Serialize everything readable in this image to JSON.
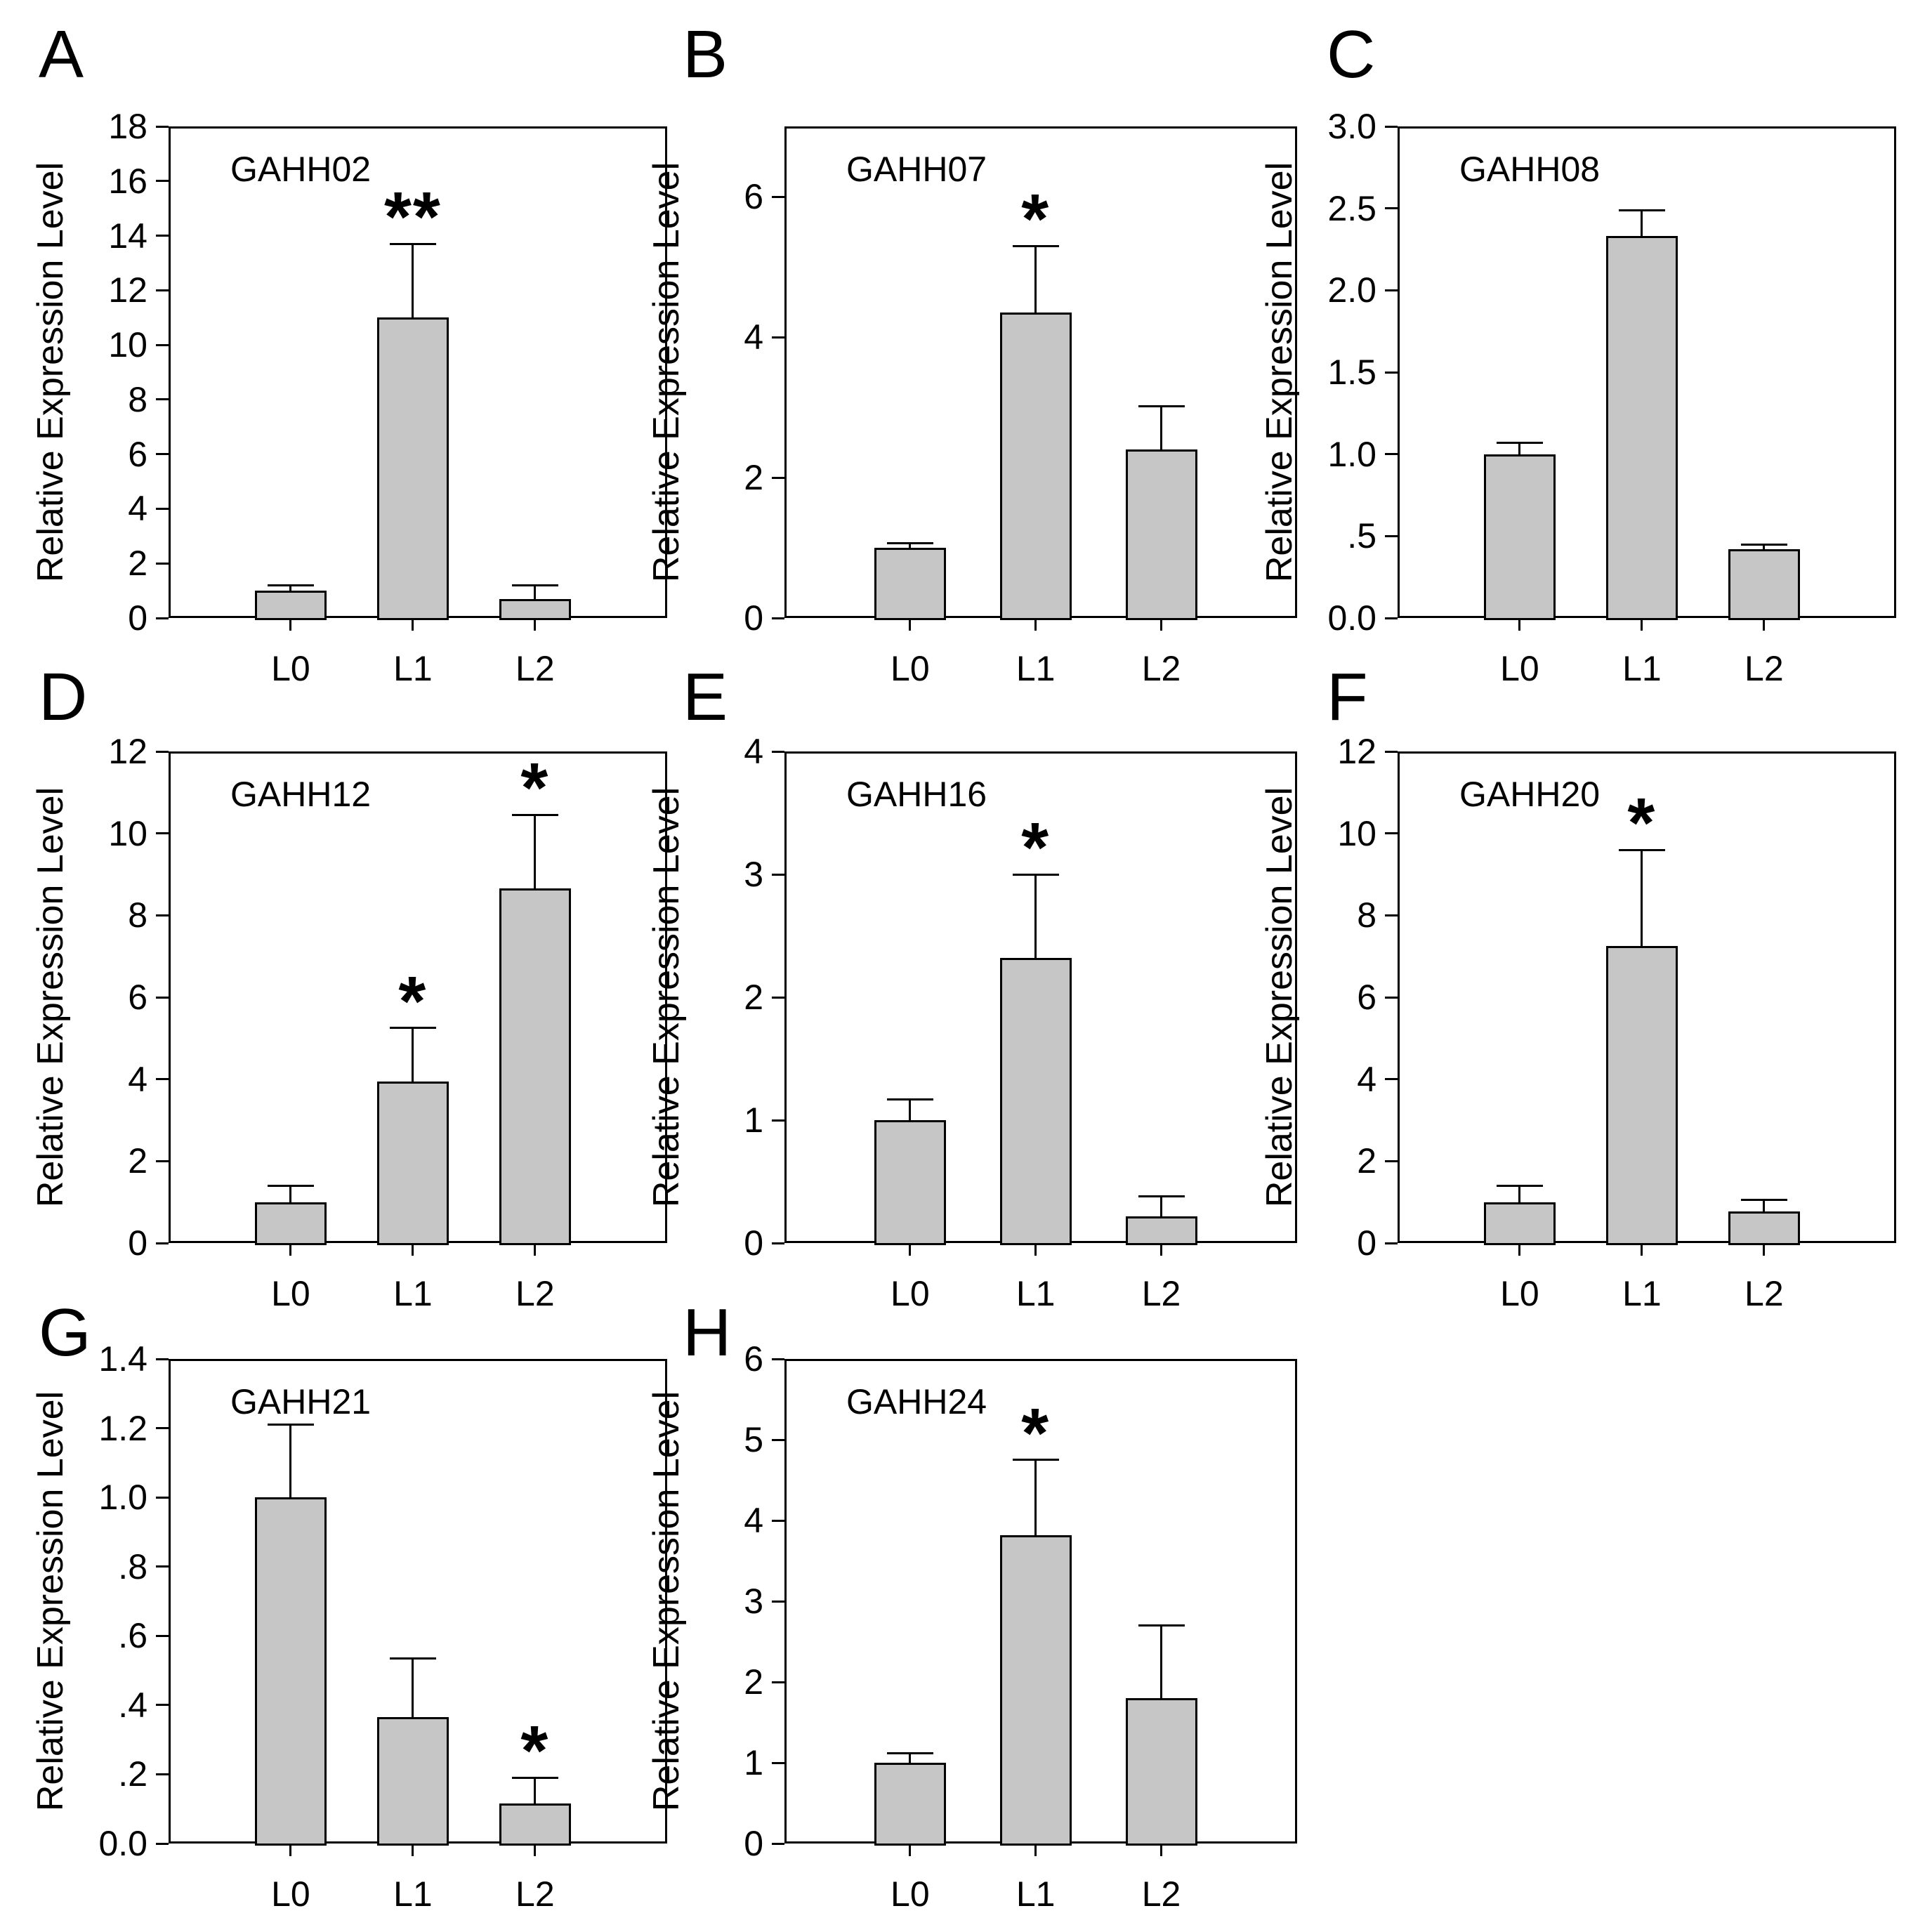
{
  "figure": {
    "description": "Eight-panel bar chart figure of relative gene expression levels in leaf stages L0, L1, L2",
    "shared_ylabel": "Relative Expression Level",
    "categories": [
      "L0",
      "L1",
      "L2"
    ]
  },
  "colors": {
    "bar_fill": "#c6c6c6",
    "axis": "#000000",
    "background": "#ffffff"
  },
  "chart_data": [
    {
      "type": "bar",
      "panel": "A",
      "title": "GAHH02",
      "ylabel": "Relative Expression Level",
      "categories": [
        "L0",
        "L1",
        "L2"
      ],
      "values": [
        1.0,
        11.0,
        0.7
      ],
      "errors": [
        0.2,
        2.7,
        0.5
      ],
      "significance": [
        "",
        "**",
        ""
      ],
      "ylim": [
        0,
        18
      ],
      "ytick_values": [
        0,
        2,
        4,
        6,
        8,
        10,
        12,
        14,
        16,
        18
      ],
      "ytick_labels": [
        "0",
        "2",
        "4",
        "6",
        "8",
        "10",
        "12",
        "14",
        "16",
        "18"
      ]
    },
    {
      "type": "bar",
      "panel": "B",
      "title": "GAHH07",
      "ylabel": "Relative Expression Level",
      "categories": [
        "L0",
        "L1",
        "L2"
      ],
      "values": [
        1.0,
        4.35,
        2.4
      ],
      "errors": [
        0.07,
        0.95,
        0.62
      ],
      "significance": [
        "",
        "*",
        ""
      ],
      "ylim": [
        0,
        7
      ],
      "ytick_values": [
        0,
        2,
        4,
        6
      ],
      "ytick_labels": [
        "0",
        "2",
        "4",
        "6"
      ]
    },
    {
      "type": "bar",
      "panel": "C",
      "title": "GAHH08",
      "ylabel": "Relative Expression Level",
      "categories": [
        "L0",
        "L1",
        "L2"
      ],
      "values": [
        1.0,
        2.33,
        0.42
      ],
      "errors": [
        0.07,
        0.16,
        0.03
      ],
      "significance": [
        "",
        "",
        ""
      ],
      "ylim": [
        0,
        3
      ],
      "ytick_values": [
        0,
        0.5,
        1.0,
        1.5,
        2.0,
        2.5,
        3.0
      ],
      "ytick_labels": [
        "0.0",
        ".5",
        "1.0",
        "1.5",
        "2.0",
        "2.5",
        "3.0"
      ]
    },
    {
      "type": "bar",
      "panel": "D",
      "title": "GAHH12",
      "ylabel": "Relative Expression Level",
      "categories": [
        "L0",
        "L1",
        "L2"
      ],
      "values": [
        1.0,
        3.95,
        8.65
      ],
      "errors": [
        0.4,
        1.3,
        1.8
      ],
      "significance": [
        "",
        "*",
        "*"
      ],
      "ylim": [
        0,
        12
      ],
      "ytick_values": [
        0,
        2,
        4,
        6,
        8,
        10,
        12
      ],
      "ytick_labels": [
        "0",
        "2",
        "4",
        "6",
        "8",
        "10",
        "12"
      ]
    },
    {
      "type": "bar",
      "panel": "E",
      "title": "GAHH16",
      "ylabel": "Relative Expression Level",
      "categories": [
        "L0",
        "L1",
        "L2"
      ],
      "values": [
        1.0,
        2.32,
        0.22
      ],
      "errors": [
        0.17,
        0.68,
        0.16
      ],
      "significance": [
        "",
        "*",
        ""
      ],
      "ylim": [
        0,
        4
      ],
      "ytick_values": [
        0,
        1,
        2,
        3,
        4
      ],
      "ytick_labels": [
        "0",
        "1",
        "2",
        "3",
        "4"
      ]
    },
    {
      "type": "bar",
      "panel": "F",
      "title": "GAHH20",
      "ylabel": "Relative Expression Level",
      "categories": [
        "L0",
        "L1",
        "L2"
      ],
      "values": [
        1.0,
        7.25,
        0.78
      ],
      "errors": [
        0.4,
        2.35,
        0.27
      ],
      "significance": [
        "",
        "*",
        ""
      ],
      "ylim": [
        0,
        12
      ],
      "ytick_values": [
        0,
        2,
        4,
        6,
        8,
        10,
        12
      ],
      "ytick_labels": [
        "0",
        "2",
        "4",
        "6",
        "8",
        "10",
        "12"
      ]
    },
    {
      "type": "bar",
      "panel": "G",
      "title": "GAHH21",
      "ylabel": "Relative Expression Level",
      "categories": [
        "L0",
        "L1",
        "L2"
      ],
      "values": [
        1.0,
        0.365,
        0.115
      ],
      "errors": [
        0.21,
        0.17,
        0.075
      ],
      "significance": [
        "",
        "",
        "*"
      ],
      "ylim": [
        0,
        1.4
      ],
      "ytick_values": [
        0,
        0.2,
        0.4,
        0.6,
        0.8,
        1.0,
        1.2,
        1.4
      ],
      "ytick_labels": [
        "0.0",
        ".2",
        ".4",
        ".6",
        ".8",
        "1.0",
        "1.2",
        "1.4"
      ]
    },
    {
      "type": "bar",
      "panel": "H",
      "title": "GAHH24",
      "ylabel": "Relative Expression Level",
      "categories": [
        "L0",
        "L1",
        "L2"
      ],
      "values": [
        1.0,
        3.82,
        1.8
      ],
      "errors": [
        0.12,
        0.93,
        0.9
      ],
      "significance": [
        "",
        "*",
        ""
      ],
      "ylim": [
        0,
        6
      ],
      "ytick_values": [
        0,
        1,
        2,
        3,
        4,
        5,
        6
      ],
      "ytick_labels": [
        "0",
        "1",
        "2",
        "3",
        "4",
        "5",
        "6"
      ]
    }
  ]
}
